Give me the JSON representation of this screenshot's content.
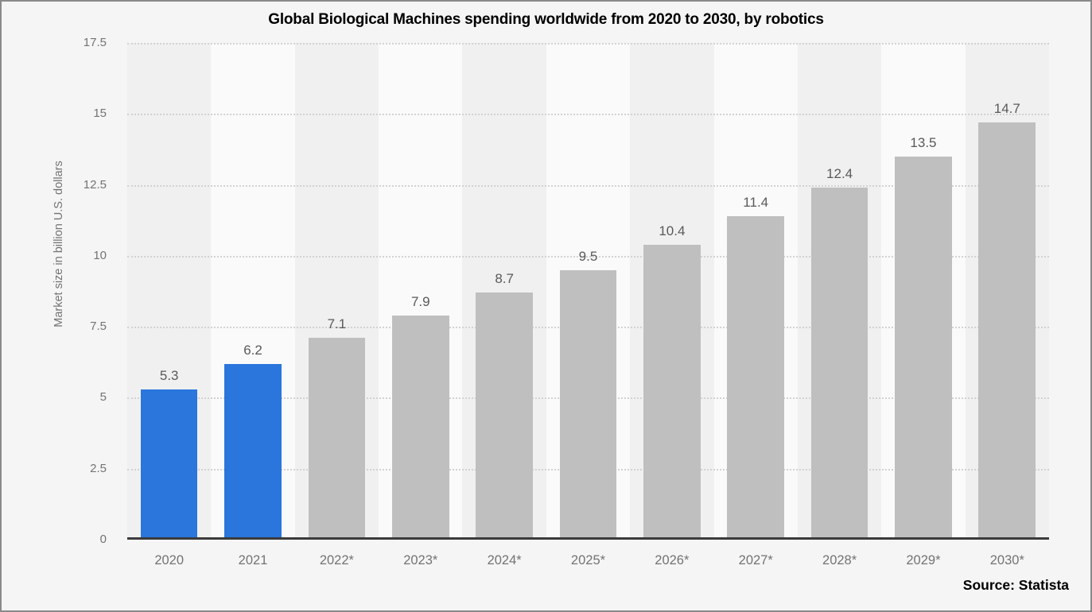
{
  "frame": {
    "source_label": "Source: Statista"
  },
  "chart_data": {
    "type": "bar",
    "title": "Global Biological Machines spending worldwide from 2020 to 2030, by robotics",
    "xlabel": "",
    "ylabel": "Market size in billion U.S. dollars",
    "categories": [
      "2020",
      "2021",
      "2022*",
      "2023*",
      "2024*",
      "2025*",
      "2026*",
      "2027*",
      "2028*",
      "2029*",
      "2030*"
    ],
    "values": [
      5.3,
      6.2,
      7.1,
      7.9,
      8.7,
      9.5,
      10.4,
      11.4,
      12.4,
      13.5,
      14.7
    ],
    "value_labels": [
      "5.3",
      "6.2",
      "7.1",
      "7.9",
      "8.7",
      "9.5",
      "10.4",
      "11.4",
      "12.4",
      "13.5",
      "14.7"
    ],
    "highlight_count": 2,
    "ylim": [
      0,
      17.5
    ],
    "yticks": [
      0,
      2.5,
      5,
      7.5,
      10,
      12.5,
      15,
      17.5
    ],
    "ytick_labels": [
      "0",
      "2.5",
      "5",
      "7.5",
      "10",
      "12.5",
      "15",
      "17.5"
    ],
    "grid": "horizontal-dotted",
    "legend_position": "none",
    "colors": {
      "bar_actual": "#2a76dc",
      "bar_forecast": "#bfbfbf",
      "band_dark": "#f0f0f0",
      "band_light": "#fafafa",
      "gridline": "#d2d2d2",
      "axis_line": "#3b3b3b",
      "tick_text": "#737373",
      "value_text": "#595959",
      "background": "#f5f5f5"
    }
  }
}
